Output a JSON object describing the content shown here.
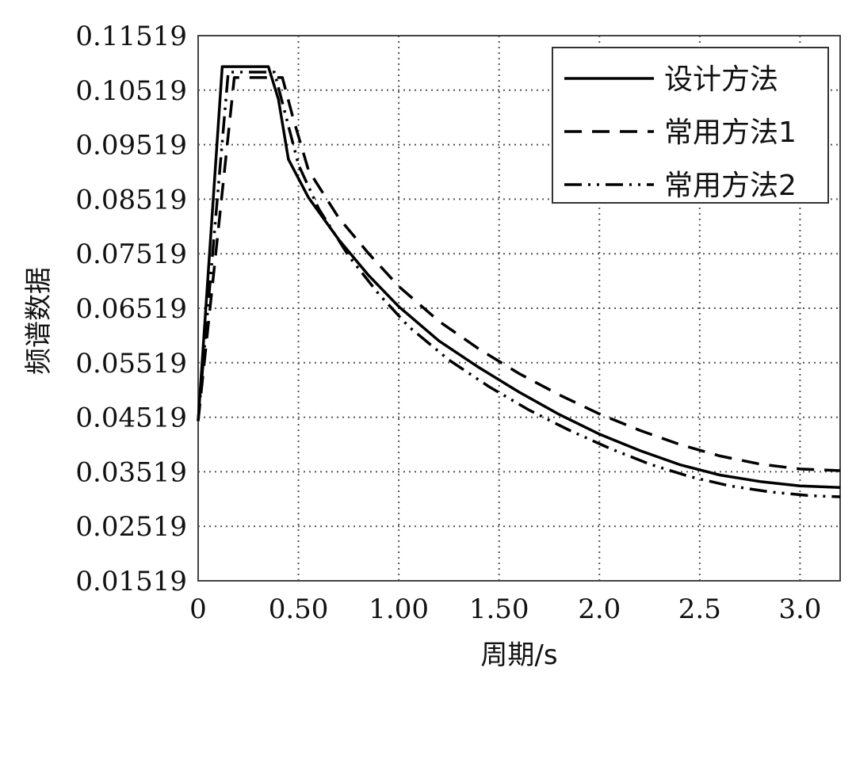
{
  "chart_data": {
    "type": "line",
    "xlabel": "周期/s",
    "ylabel": "频谱数据",
    "xlim": [
      0,
      3.2
    ],
    "ylim": [
      0.01519,
      0.11519
    ],
    "x_ticks": [
      {
        "value": 0,
        "label": "0"
      },
      {
        "value": 0.5,
        "label": "0.50"
      },
      {
        "value": 1.0,
        "label": "1.00"
      },
      {
        "value": 1.5,
        "label": "1.50"
      },
      {
        "value": 2.0,
        "label": "2.0"
      },
      {
        "value": 2.5,
        "label": "2.5"
      },
      {
        "value": 3.0,
        "label": "3.0"
      }
    ],
    "y_ticks": [
      {
        "value": 0.11519,
        "label": "0.11519"
      },
      {
        "value": 0.10519,
        "label": "0.10519"
      },
      {
        "value": 0.09519,
        "label": "0.09519"
      },
      {
        "value": 0.08519,
        "label": "0.08519"
      },
      {
        "value": 0.07519,
        "label": "0.07519"
      },
      {
        "value": 0.06519,
        "label": "0.06519"
      },
      {
        "value": 0.05519,
        "label": "0.05519"
      },
      {
        "value": 0.04519,
        "label": "0.04519"
      },
      {
        "value": 0.03519,
        "label": "0.03519"
      },
      {
        "value": 0.02519,
        "label": "0.02519"
      },
      {
        "value": 0.01519,
        "label": "0.01519"
      }
    ],
    "grid": true,
    "legend_position": "top-right",
    "series": [
      {
        "name": "设计方法",
        "style": "solid",
        "color": "#000000",
        "points": [
          [
            0,
            0.0445
          ],
          [
            0.12,
            0.1095
          ],
          [
            0.35,
            0.1095
          ],
          [
            0.4,
            0.1035
          ],
          [
            0.45,
            0.0925
          ],
          [
            0.55,
            0.0855
          ],
          [
            0.7,
            0.0778
          ],
          [
            0.85,
            0.0712
          ],
          [
            1.0,
            0.0655
          ],
          [
            1.2,
            0.0592
          ],
          [
            1.4,
            0.0543
          ],
          [
            1.6,
            0.0498
          ],
          [
            1.8,
            0.0457
          ],
          [
            2.0,
            0.0421
          ],
          [
            2.2,
            0.0391
          ],
          [
            2.4,
            0.0365
          ],
          [
            2.6,
            0.0346
          ],
          [
            2.8,
            0.0334
          ],
          [
            3.0,
            0.0326
          ],
          [
            3.2,
            0.0323
          ]
        ]
      },
      {
        "name": "常用方法1",
        "style": "dashed",
        "color": "#000000",
        "points": [
          [
            0,
            0.0445
          ],
          [
            0.18,
            0.1075
          ],
          [
            0.42,
            0.1075
          ],
          [
            0.47,
            0.1005
          ],
          [
            0.55,
            0.0905
          ],
          [
            0.7,
            0.0818
          ],
          [
            0.85,
            0.0752
          ],
          [
            1.0,
            0.0692
          ],
          [
            1.2,
            0.0628
          ],
          [
            1.4,
            0.0577
          ],
          [
            1.6,
            0.0532
          ],
          [
            1.8,
            0.0493
          ],
          [
            2.0,
            0.0458
          ],
          [
            2.2,
            0.0428
          ],
          [
            2.4,
            0.0402
          ],
          [
            2.6,
            0.0381
          ],
          [
            2.8,
            0.0366
          ],
          [
            3.0,
            0.0357
          ],
          [
            3.2,
            0.0354
          ]
        ]
      },
      {
        "name": "常用方法2",
        "style": "dash-dot-dot",
        "color": "#000000",
        "points": [
          [
            0,
            0.0445
          ],
          [
            0.15,
            0.1085
          ],
          [
            0.38,
            0.1085
          ],
          [
            0.43,
            0.1015
          ],
          [
            0.5,
            0.0915
          ],
          [
            0.6,
            0.0835
          ],
          [
            0.75,
            0.0748
          ],
          [
            0.9,
            0.0678
          ],
          [
            1.05,
            0.0618
          ],
          [
            1.25,
            0.0557
          ],
          [
            1.45,
            0.0508
          ],
          [
            1.65,
            0.0465
          ],
          [
            1.85,
            0.0428
          ],
          [
            2.05,
            0.0395
          ],
          [
            2.25,
            0.0366
          ],
          [
            2.45,
            0.0343
          ],
          [
            2.65,
            0.0326
          ],
          [
            2.85,
            0.0315
          ],
          [
            3.05,
            0.0308
          ],
          [
            3.2,
            0.0306
          ]
        ]
      }
    ]
  }
}
